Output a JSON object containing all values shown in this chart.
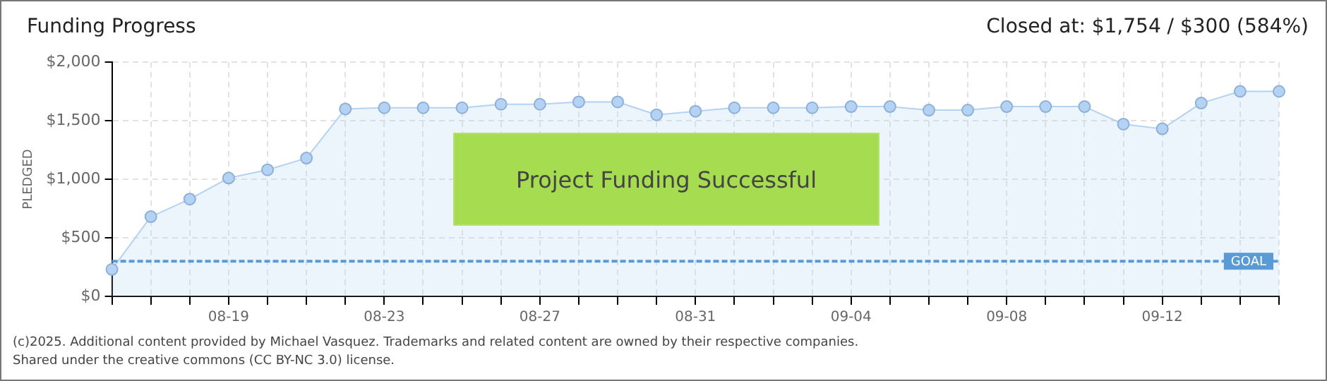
{
  "chart_data": {
    "type": "area",
    "title": "Funding Progress",
    "ylabel": "PLEDGED",
    "categories": [
      null,
      null,
      null,
      "08-19",
      null,
      null,
      null,
      "08-23",
      null,
      null,
      null,
      "08-27",
      null,
      null,
      null,
      "08-31",
      null,
      null,
      null,
      "09-04",
      null,
      null,
      null,
      "09-08",
      null,
      null,
      null,
      "09-12",
      null,
      null,
      null
    ],
    "series": [
      {
        "color": "#b4d2f3",
        "values": [
          230,
          680,
          830,
          1010,
          1080,
          1180,
          1600,
          1610,
          1610,
          1610,
          1640,
          1640,
          1660,
          1660,
          1550,
          1580,
          1610,
          1610,
          1610,
          1620,
          1620,
          1590,
          1590,
          1620,
          1620,
          1620,
          1470,
          1430,
          1650,
          1750,
          1750
        ]
      }
    ],
    "ylim": [
      0,
      2000
    ],
    "yticks": [
      {
        "value": 0,
        "label": "$0"
      },
      {
        "value": 500,
        "label": "$500"
      },
      {
        "value": 1000,
        "label": "$1,000"
      },
      {
        "value": 1500,
        "label": "$1,500"
      },
      {
        "value": 2000,
        "label": "$2,000"
      }
    ],
    "grid": true,
    "marker": "circle",
    "ref_lines": [
      {
        "axis": "y",
        "value": 300,
        "label": "GOAL",
        "color": "#5b9bd5",
        "line_style": "dashed"
      }
    ],
    "annotations": [
      "Closed at: $1,754 / $300 (584%)",
      "Project Funding Successful",
      "(c)2025. Additional content provided by Michael Vasquez. Trademarks and related content are owned by their respective companies.",
      "Shared under the creative commons (CC BY-NC 3.0) license."
    ]
  }
}
